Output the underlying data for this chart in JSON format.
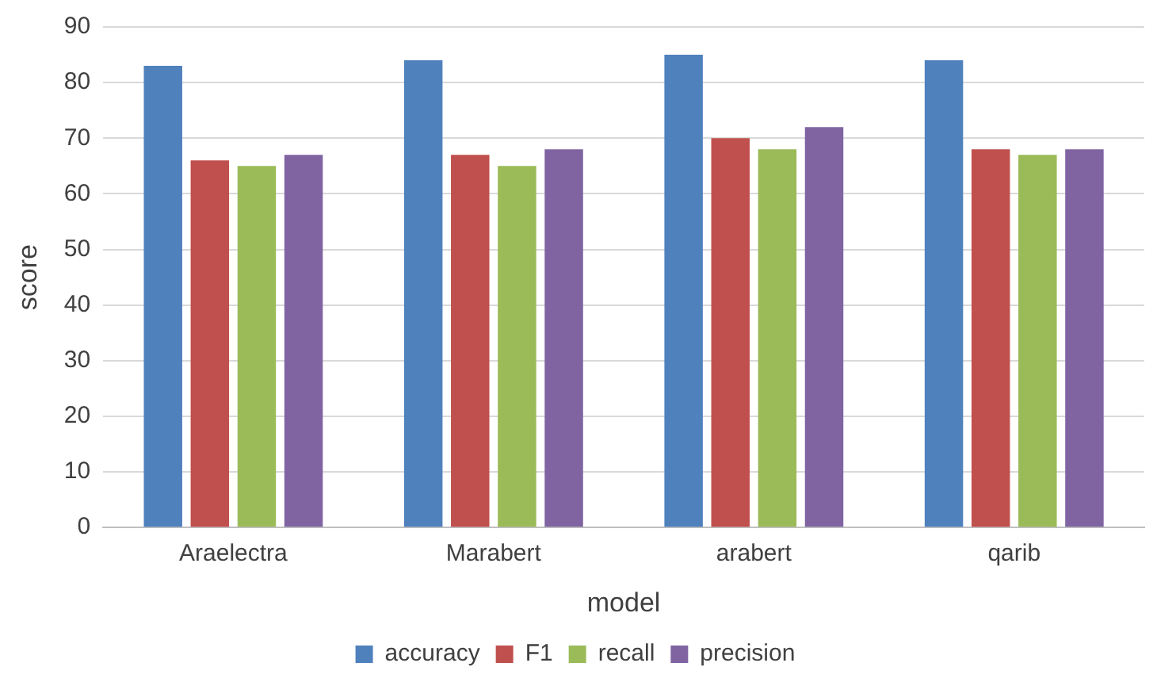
{
  "chart_data": {
    "type": "bar",
    "xlabel": "model",
    "ylabel": "score",
    "categories": [
      "Araelectra",
      "Marabert",
      "arabert",
      "qarib"
    ],
    "series": [
      {
        "name": "accuracy",
        "color": "#4f81bd",
        "values": [
          83,
          84,
          85,
          84
        ]
      },
      {
        "name": "F1",
        "color": "#c0504d",
        "values": [
          66,
          67,
          70,
          68
        ]
      },
      {
        "name": "recall",
        "color": "#9bbb59",
        "values": [
          65,
          65,
          68,
          67
        ]
      },
      {
        "name": "precision",
        "color": "#8064a2",
        "values": [
          67,
          68,
          72,
          68
        ]
      }
    ],
    "ylim": [
      0,
      90
    ],
    "yticks": [
      0,
      10,
      20,
      30,
      40,
      50,
      60,
      70,
      80,
      90
    ],
    "grid": "y",
    "legend": "bottom"
  }
}
